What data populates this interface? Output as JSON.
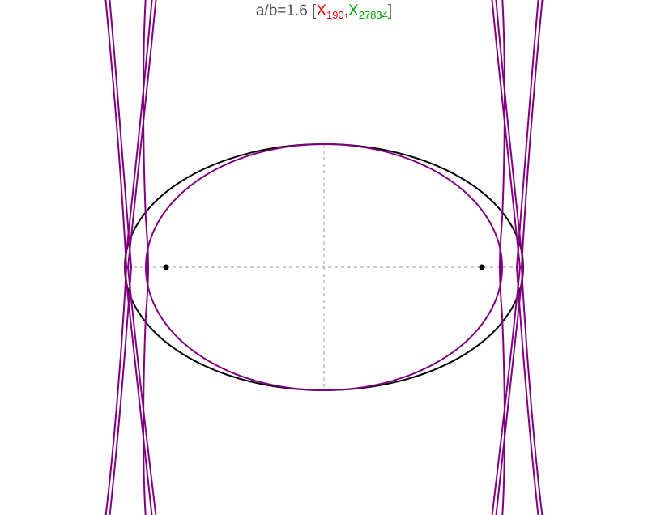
{
  "title": {
    "ratio_label": "a/b=1.6",
    "open_bracket": " [",
    "separator": ",",
    "close_bracket": "]",
    "center_1": {
      "letter": "X",
      "subscript": "190",
      "color": "#ee0000"
    },
    "center_2": {
      "letter": "X",
      "subscript": "27834",
      "color": "#00a000"
    }
  },
  "colors": {
    "ellipse": "#000000",
    "curves": "#800080",
    "axes": "#999999",
    "foci": "#000000"
  },
  "ellipse": {
    "a_over_b": 1.6
  },
  "icons": [
    "focus-point-left",
    "focus-point-right"
  ]
}
